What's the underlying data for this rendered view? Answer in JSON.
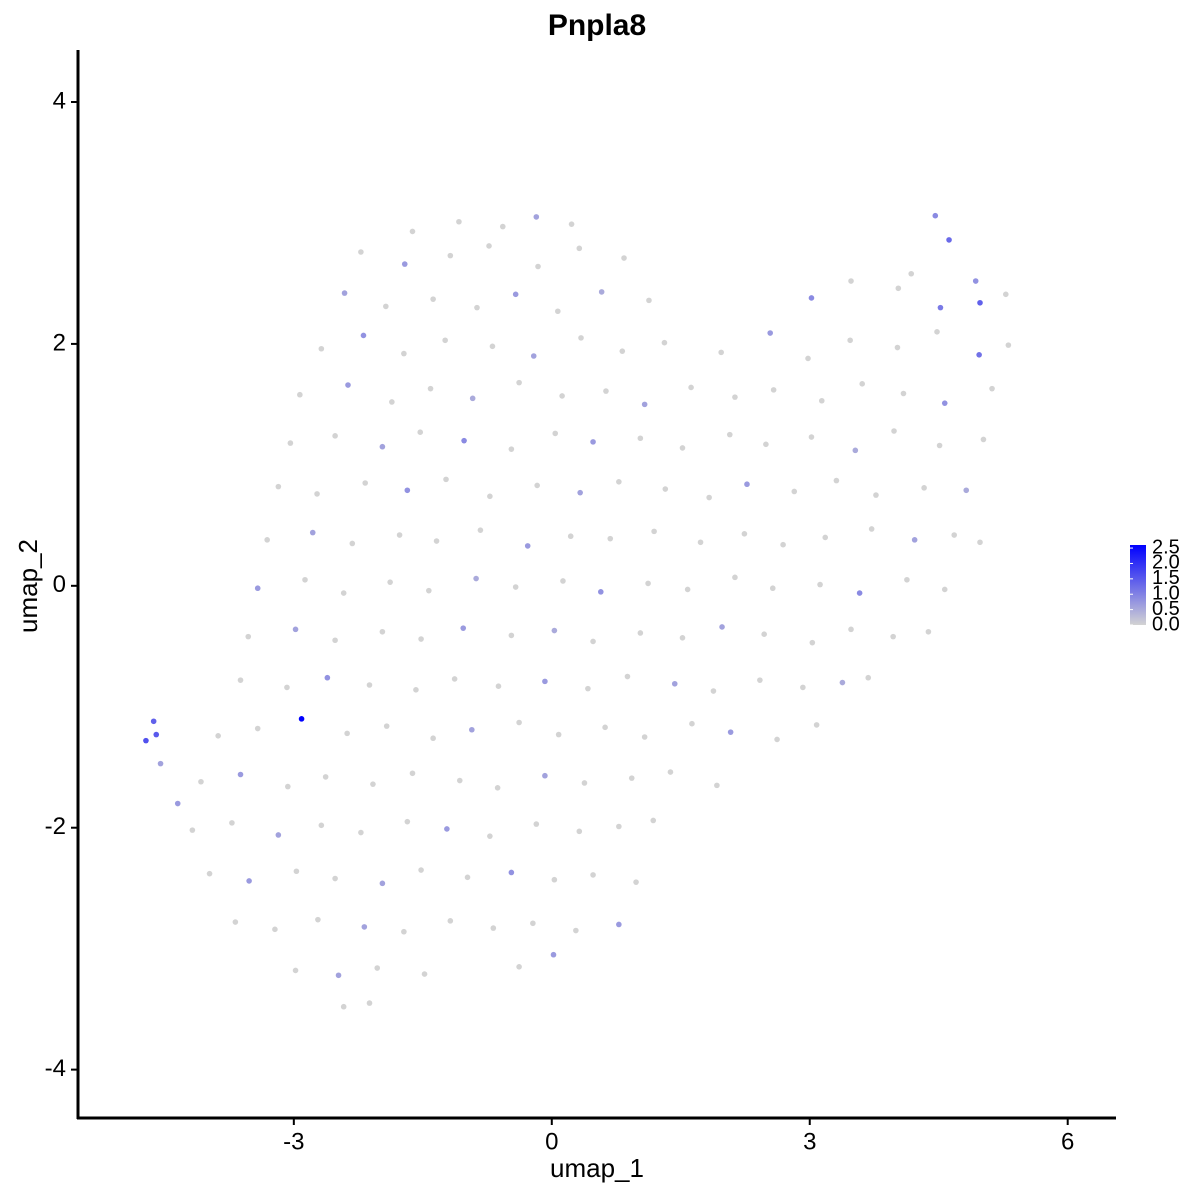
{
  "chart_data": {
    "type": "scatter",
    "title": "Pnpla8",
    "x_label": "umap_1",
    "y_label": "umap_2",
    "xlim": [
      -5.51,
      6.55
    ],
    "ylim": [
      -4.4,
      4.43
    ],
    "xticks": [
      -3,
      0,
      3,
      6
    ],
    "yticks": [
      -4,
      -2,
      0,
      2,
      4
    ],
    "color_low": "#d3d3d3",
    "color_high": "#0000ff",
    "clim": [
      0,
      2.6
    ],
    "cticks": [
      {
        "value": 0,
        "label": "0.0"
      },
      0.5,
      {
        "value": 1,
        "label": "1.0"
      },
      1.5,
      {
        "value": 2,
        "label": "2.0"
      },
      2.5
    ],
    "x": [
      -1.62,
      -1.08,
      -0.57,
      -0.18,
      0.23,
      4.46,
      -2.22,
      -1.71,
      -1.18,
      -0.73,
      -0.16,
      0.32,
      0.84,
      4.18,
      4.62,
      4.93,
      -2.41,
      -1.93,
      -1.38,
      -0.87,
      -0.42,
      0.07,
      0.58,
      1.13,
      3.02,
      3.48,
      4.03,
      4.52,
      4.98,
      5.28,
      -2.68,
      -2.19,
      -1.72,
      -1.24,
      -0.69,
      -0.21,
      0.34,
      0.82,
      1.31,
      1.97,
      2.54,
      2.98,
      3.47,
      4.02,
      4.48,
      4.97,
      5.31,
      -2.93,
      -2.37,
      -1.86,
      -1.41,
      -0.92,
      -0.38,
      0.12,
      0.63,
      1.08,
      1.62,
      2.13,
      2.58,
      3.14,
      3.61,
      4.09,
      4.57,
      5.12,
      -3.04,
      -2.52,
      -1.97,
      -1.53,
      -1.02,
      -0.47,
      0.04,
      0.48,
      1.03,
      1.52,
      2.07,
      2.49,
      3.02,
      3.53,
      3.98,
      4.51,
      5.02,
      -3.18,
      -2.73,
      -2.17,
      -1.68,
      -1.23,
      -0.72,
      -0.17,
      0.33,
      0.78,
      1.32,
      1.83,
      2.27,
      2.82,
      3.31,
      3.77,
      4.33,
      4.82,
      -3.31,
      -2.78,
      -2.32,
      -1.77,
      -1.34,
      -0.83,
      -0.28,
      0.22,
      0.68,
      1.19,
      1.73,
      2.24,
      2.69,
      3.18,
      3.72,
      4.22,
      4.68,
      4.98,
      -3.42,
      -2.87,
      -2.42,
      -1.88,
      -1.43,
      -0.88,
      -0.42,
      0.13,
      0.57,
      1.12,
      1.58,
      2.13,
      2.57,
      3.12,
      3.58,
      4.13,
      4.57,
      -3.53,
      -2.98,
      -2.52,
      -1.97,
      -1.52,
      -1.03,
      -0.47,
      0.03,
      0.48,
      1.03,
      1.52,
      1.98,
      2.47,
      3.03,
      3.48,
      3.97,
      4.38,
      -3.62,
      -3.08,
      -2.61,
      -2.12,
      -1.58,
      -1.13,
      -0.62,
      -0.08,
      0.42,
      0.88,
      1.43,
      1.88,
      2.42,
      2.92,
      3.38,
      3.68,
      -3.88,
      -3.42,
      -2.91,
      -2.38,
      -1.92,
      -1.38,
      -0.93,
      -0.38,
      0.08,
      0.62,
      1.08,
      1.63,
      2.08,
      2.62,
      3.08,
      -4.08,
      -3.62,
      -3.07,
      -2.63,
      -2.08,
      -1.62,
      -1.07,
      -0.63,
      -0.08,
      0.38,
      0.93,
      1.38,
      1.92,
      -4.18,
      -3.72,
      -3.18,
      -2.68,
      -2.22,
      -1.68,
      -1.22,
      -0.72,
      -0.18,
      0.32,
      0.78,
      1.18,
      -3.98,
      -3.52,
      -2.97,
      -2.52,
      -1.97,
      -1.52,
      -0.98,
      -0.47,
      0.03,
      0.48,
      0.98,
      -3.68,
      -3.22,
      -2.72,
      -2.18,
      -1.72,
      -1.18,
      -0.68,
      -0.22,
      0.28,
      0.78,
      -2.98,
      -2.48,
      -2.03,
      -1.48,
      -0.38,
      0.02,
      -2.42,
      -2.12,
      -4.72,
      -4.63,
      -4.6,
      -4.55,
      -4.35
    ],
    "y": [
      2.93,
      3.01,
      2.97,
      3.05,
      2.99,
      3.06,
      2.76,
      2.66,
      2.73,
      2.81,
      2.64,
      2.79,
      2.71,
      2.58,
      2.86,
      2.52,
      2.42,
      2.31,
      2.37,
      2.3,
      2.41,
      2.27,
      2.43,
      2.36,
      2.38,
      2.52,
      2.46,
      2.3,
      2.34,
      2.41,
      1.96,
      2.07,
      1.92,
      2.03,
      1.98,
      1.9,
      2.05,
      1.94,
      2.01,
      1.93,
      2.09,
      1.88,
      2.03,
      1.97,
      2.1,
      1.91,
      1.99,
      1.58,
      1.66,
      1.52,
      1.63,
      1.55,
      1.68,
      1.57,
      1.61,
      1.5,
      1.64,
      1.56,
      1.62,
      1.53,
      1.67,
      1.59,
      1.51,
      1.63,
      1.18,
      1.24,
      1.15,
      1.27,
      1.2,
      1.13,
      1.26,
      1.19,
      1.22,
      1.14,
      1.25,
      1.17,
      1.23,
      1.12,
      1.28,
      1.16,
      1.21,
      0.82,
      0.76,
      0.85,
      0.79,
      0.88,
      0.74,
      0.83,
      0.77,
      0.86,
      0.8,
      0.73,
      0.84,
      0.78,
      0.87,
      0.75,
      0.81,
      0.79,
      0.38,
      0.44,
      0.35,
      0.42,
      0.37,
      0.46,
      0.33,
      0.41,
      0.39,
      0.45,
      0.36,
      0.43,
      0.34,
      0.4,
      0.47,
      0.38,
      0.42,
      0.36,
      -0.02,
      0.05,
      -0.06,
      0.03,
      -0.04,
      0.06,
      -0.01,
      0.04,
      -0.05,
      0.02,
      -0.03,
      0.07,
      -0.02,
      0.01,
      -0.06,
      0.05,
      -0.03,
      -0.42,
      -0.36,
      -0.45,
      -0.38,
      -0.44,
      -0.35,
      -0.41,
      -0.37,
      -0.46,
      -0.39,
      -0.43,
      -0.34,
      -0.4,
      -0.47,
      -0.36,
      -0.42,
      -0.38,
      -0.78,
      -0.84,
      -0.76,
      -0.82,
      -0.86,
      -0.77,
      -0.83,
      -0.79,
      -0.85,
      -0.75,
      -0.81,
      -0.87,
      -0.78,
      -0.84,
      -0.8,
      -0.76,
      -1.24,
      -1.18,
      -1.1,
      -1.22,
      -1.16,
      -1.26,
      -1.19,
      -1.13,
      -1.23,
      -1.17,
      -1.25,
      -1.14,
      -1.21,
      -1.27,
      -1.15,
      -1.62,
      -1.56,
      -1.66,
      -1.58,
      -1.64,
      -1.55,
      -1.61,
      -1.67,
      -1.57,
      -1.63,
      -1.59,
      -1.54,
      -1.65,
      -2.02,
      -1.96,
      -2.06,
      -1.98,
      -2.04,
      -1.95,
      -2.01,
      -2.07,
      -1.97,
      -2.03,
      -1.99,
      -1.94,
      -2.38,
      -2.44,
      -2.36,
      -2.42,
      -2.46,
      -2.35,
      -2.41,
      -2.37,
      -2.43,
      -2.39,
      -2.45,
      -2.78,
      -2.84,
      -2.76,
      -2.82,
      -2.86,
      -2.77,
      -2.83,
      -2.79,
      -2.85,
      -2.8,
      -3.18,
      -3.22,
      -3.16,
      -3.21,
      -3.15,
      -3.05,
      -3.48,
      -3.45,
      -1.28,
      -1.12,
      -1.23,
      -1.47,
      -1.8
    ],
    "expression": [
      0,
      0,
      0,
      0.6,
      0,
      0.9,
      0,
      0.7,
      0,
      0,
      0,
      0,
      0,
      0,
      1.3,
      0.8,
      0.6,
      0,
      0,
      0,
      0.7,
      0,
      0.5,
      0,
      0.9,
      0,
      0,
      1.1,
      1.4,
      0,
      0,
      0.8,
      0,
      0,
      0,
      0.6,
      0,
      0,
      0,
      0,
      0.7,
      0,
      0,
      0,
      0,
      1.2,
      0,
      0,
      0.7,
      0,
      0,
      0.5,
      0,
      0,
      0,
      0.6,
      0,
      0,
      0,
      0,
      0,
      0,
      0.8,
      0,
      0,
      0,
      0.6,
      0,
      0.9,
      0,
      0,
      0.7,
      0,
      0,
      0,
      0,
      0,
      0.5,
      0,
      0,
      0,
      0,
      0,
      0,
      0.8,
      0,
      0,
      0,
      0.6,
      0,
      0,
      0,
      0.7,
      0,
      0,
      0,
      0,
      0.5,
      0,
      0.6,
      0,
      0,
      0,
      0,
      0.7,
      0,
      0,
      0,
      0,
      0,
      0,
      0,
      0,
      0.6,
      0,
      0,
      0.7,
      0,
      0,
      0,
      0,
      0.5,
      0,
      0,
      0.8,
      0,
      0,
      0,
      0,
      0,
      0.9,
      0,
      0,
      0,
      0.6,
      0,
      0,
      0,
      0.7,
      0,
      0.5,
      0,
      0,
      0,
      0.6,
      0,
      0,
      0,
      0,
      0,
      0,
      0,
      0.8,
      0,
      0,
      0,
      0,
      0.7,
      0,
      0,
      0.6,
      0,
      0,
      0,
      0.5,
      0,
      0,
      0,
      2.6,
      0,
      0,
      0,
      0.6,
      0,
      0,
      0,
      0,
      0,
      0.7,
      0,
      0,
      0,
      0.7,
      0,
      0,
      0,
      0,
      0,
      0,
      0.6,
      0,
      0,
      0,
      0,
      0,
      0,
      0.6,
      0,
      0,
      0,
      0.7,
      0,
      0,
      0,
      0,
      0,
      0,
      0.7,
      0,
      0,
      0.6,
      0,
      0,
      0.8,
      0,
      0,
      0,
      0,
      0,
      0,
      0.6,
      0,
      0,
      0,
      0,
      0,
      0.7,
      0,
      0.6,
      0,
      0,
      0,
      0.7,
      0,
      0,
      1.6,
      1.4,
      1.5,
      0.6,
      0.7
    ]
  }
}
